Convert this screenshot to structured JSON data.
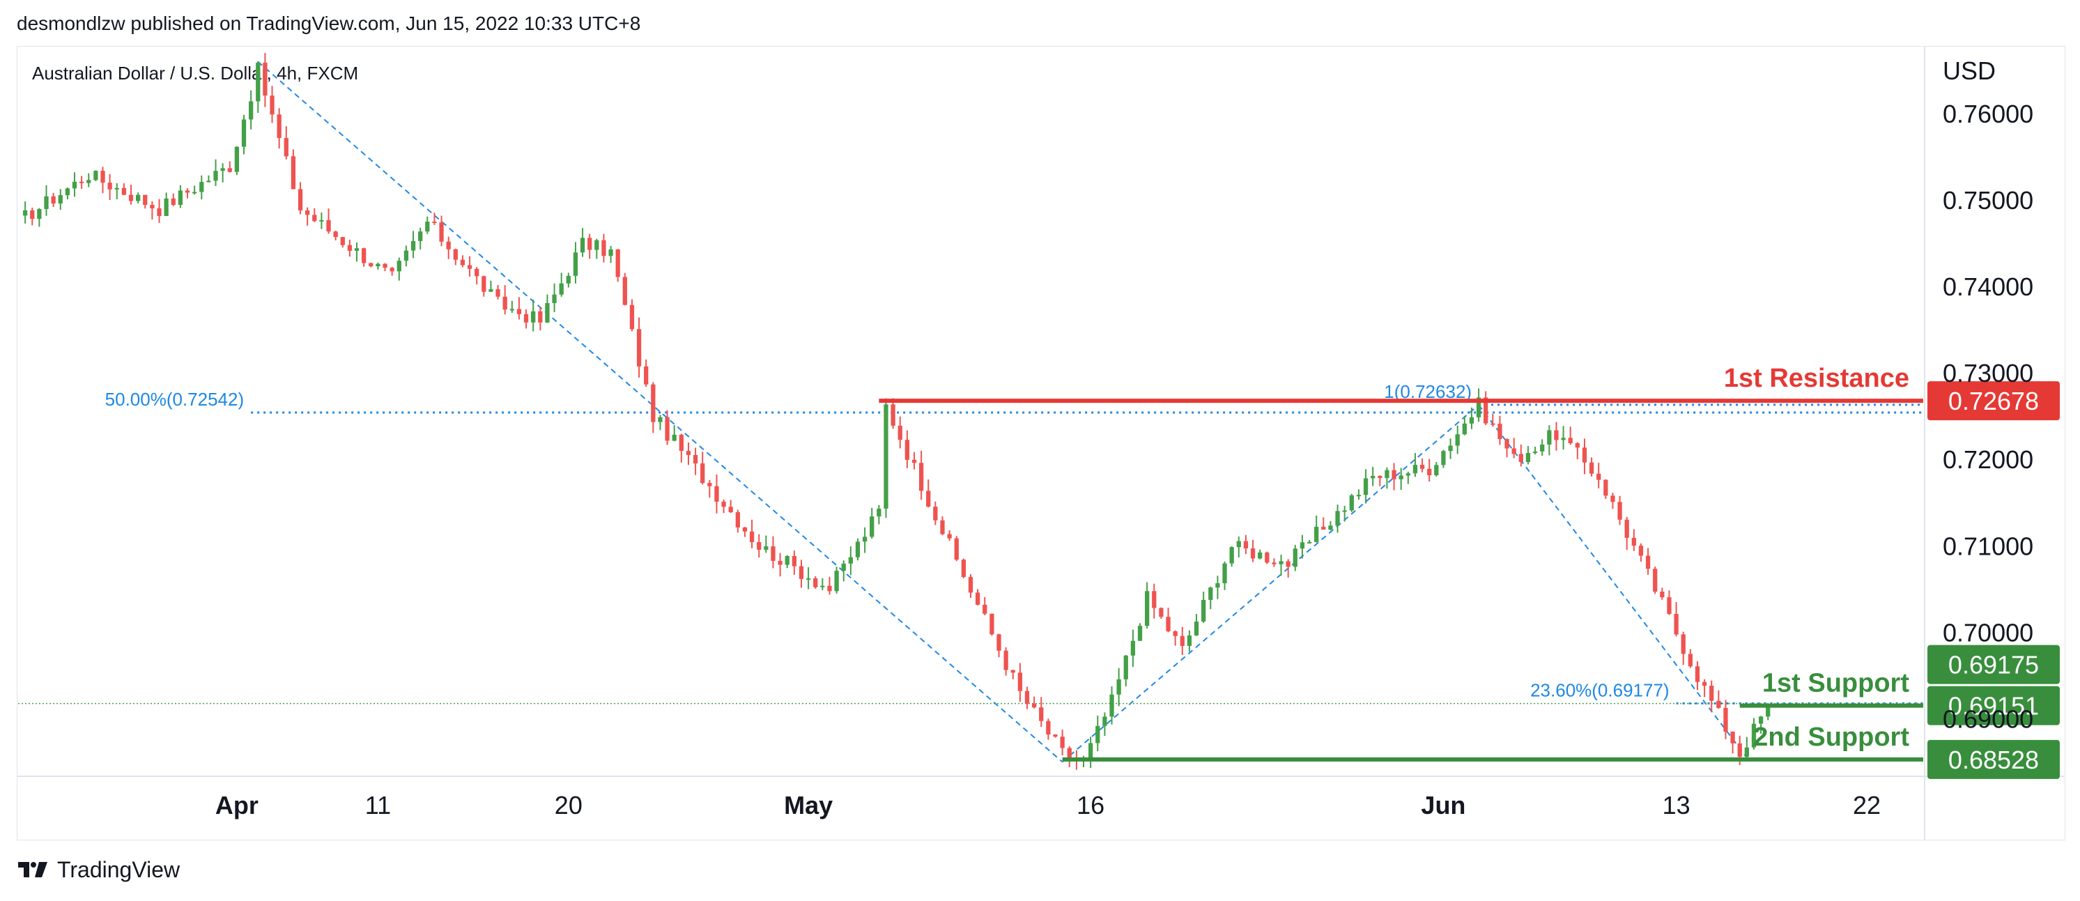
{
  "header": {
    "published_by": "desmondlzw published on TradingView.com, Jun 15, 2022 10:33 UTC+8"
  },
  "footer": {
    "brand": "TradingView"
  },
  "colors": {
    "up": "#26a69a",
    "up_body": "#43a047",
    "down": "#ef5350",
    "resistance": "#e53935",
    "support": "#388e3c",
    "fib": "#1e88e5"
  },
  "chart_data": {
    "type": "candlestick",
    "symbol_label": "Australian Dollar / U.S. Dollar, 4h, FXCM",
    "currency": "USD",
    "y_range": [
      0.6835,
      0.7675
    ],
    "y_ticks": [
      "0.76000",
      "0.75000",
      "0.74000",
      "0.73000",
      "0.72000",
      "0.71000",
      "0.70000",
      "0.69000"
    ],
    "x_ticks": [
      {
        "label": "Apr",
        "bold": true,
        "bar": 31
      },
      {
        "label": "11",
        "bold": false,
        "bar": 51
      },
      {
        "label": "20",
        "bold": false,
        "bar": 78
      },
      {
        "label": "May",
        "bold": true,
        "bar": 112
      },
      {
        "label": "16",
        "bold": false,
        "bar": 152
      },
      {
        "label": "Jun",
        "bold": true,
        "bar": 202
      },
      {
        "label": "13",
        "bold": false,
        "bar": 235
      },
      {
        "label": "22",
        "bold": false,
        "bar": 262
      }
    ],
    "x_total_bars": 270,
    "pivots": [
      {
        "bar": 0,
        "price": 0.7475
      },
      {
        "bar": 10,
        "price": 0.753
      },
      {
        "bar": 20,
        "price": 0.749
      },
      {
        "bar": 30,
        "price": 0.754
      },
      {
        "bar": 34,
        "price": 0.765
      },
      {
        "bar": 40,
        "price": 0.749
      },
      {
        "bar": 53,
        "price": 0.741
      },
      {
        "bar": 58,
        "price": 0.7475
      },
      {
        "bar": 68,
        "price": 0.738
      },
      {
        "bar": 74,
        "price": 0.736
      },
      {
        "bar": 80,
        "price": 0.745
      },
      {
        "bar": 84,
        "price": 0.744
      },
      {
        "bar": 90,
        "price": 0.725
      },
      {
        "bar": 96,
        "price": 0.719
      },
      {
        "bar": 105,
        "price": 0.71
      },
      {
        "bar": 115,
        "price": 0.705
      },
      {
        "bar": 122,
        "price": 0.714
      },
      {
        "bar": 123,
        "price": 0.7262
      },
      {
        "bar": 132,
        "price": 0.71
      },
      {
        "bar": 142,
        "price": 0.693
      },
      {
        "bar": 148,
        "price": 0.686
      },
      {
        "bar": 151,
        "price": 0.685
      },
      {
        "bar": 155,
        "price": 0.692
      },
      {
        "bar": 160,
        "price": 0.704
      },
      {
        "bar": 165,
        "price": 0.698
      },
      {
        "bar": 172,
        "price": 0.71
      },
      {
        "bar": 180,
        "price": 0.708
      },
      {
        "bar": 192,
        "price": 0.718
      },
      {
        "bar": 200,
        "price": 0.719
      },
      {
        "bar": 207,
        "price": 0.7263
      },
      {
        "bar": 212,
        "price": 0.72
      },
      {
        "bar": 218,
        "price": 0.723
      },
      {
        "bar": 224,
        "price": 0.718
      },
      {
        "bar": 232,
        "price": 0.705
      },
      {
        "bar": 238,
        "price": 0.695
      },
      {
        "bar": 244,
        "price": 0.686
      },
      {
        "bar": 248,
        "price": 0.6915
      }
    ],
    "levels": [
      {
        "name": "1st Resistance",
        "price": 0.72678,
        "label": "0.72678",
        "color": "#e53935",
        "start_bar": 122
      },
      {
        "name": "1st Support",
        "price": 0.69151,
        "label": "0.69151",
        "color": "#388e3c",
        "start_bar": 244
      },
      {
        "name": "2nd Support",
        "price": 0.68528,
        "label": "0.68528",
        "color": "#388e3c",
        "start_bar": 148
      }
    ],
    "last_price": {
      "price": 0.69175,
      "label": "0.69175",
      "color": "#388e3c"
    },
    "fib_lines": [
      {
        "label": "50.00%(0.72542)",
        "price": 0.72542,
        "start_bar": 33
      },
      {
        "label": "1(0.72632)",
        "price": 0.72632,
        "start_bar": 207
      },
      {
        "label": "23.60%(0.69177)",
        "price": 0.69177,
        "start_bar": 235
      }
    ],
    "trendlines": [
      {
        "from": [
          34,
          0.766
        ],
        "to": [
          148,
          0.685
        ]
      },
      {
        "from": [
          148,
          0.685
        ],
        "to": [
          207,
          0.7263
        ]
      },
      {
        "from": [
          207,
          0.7263
        ],
        "to": [
          245,
          0.6855
        ]
      }
    ]
  }
}
